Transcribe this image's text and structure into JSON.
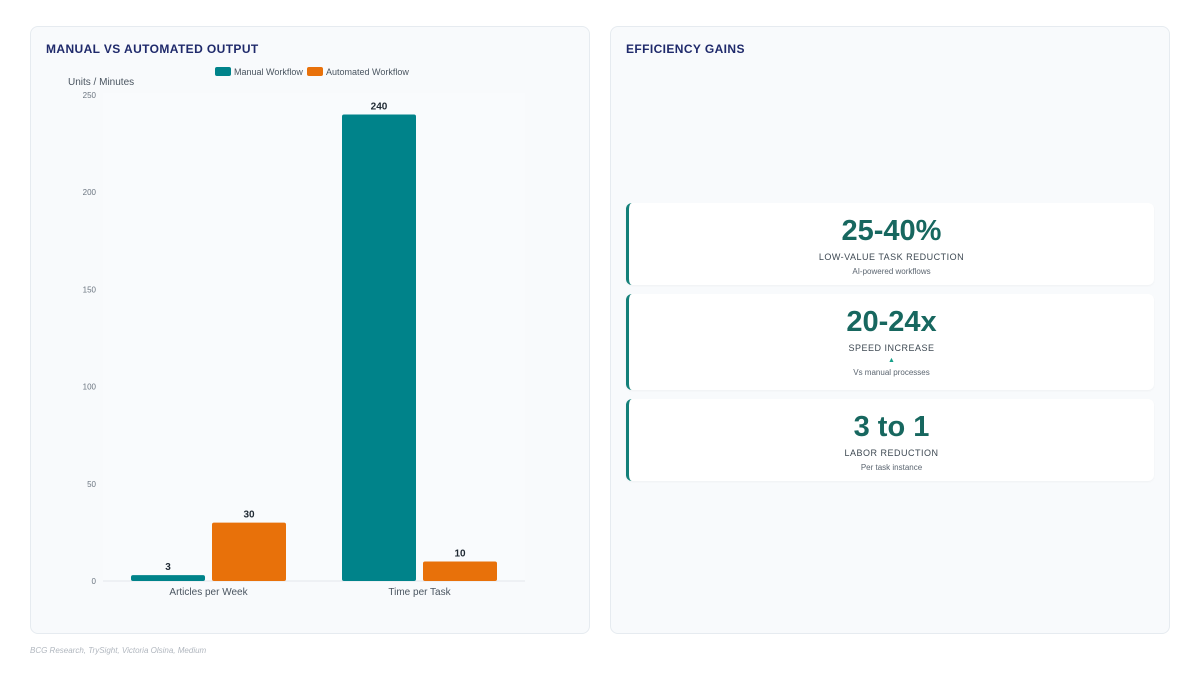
{
  "chart_panel": {
    "title": "MANUAL VS AUTOMATED OUTPUT"
  },
  "chart_data": {
    "type": "bar",
    "ylabel": "Units / Minutes",
    "categories": [
      "Articles per Week",
      "Time per Task"
    ],
    "series": [
      {
        "name": "Manual Workflow",
        "values": [
          3,
          240
        ],
        "color": "#00838a"
      },
      {
        "name": "Automated Workflow",
        "values": [
          30,
          10
        ],
        "color": "#e8710a"
      }
    ],
    "ylim": [
      0,
      250
    ],
    "yticks": [
      0,
      50,
      100,
      150,
      200,
      250
    ],
    "legend": "top",
    "grid": false,
    "data_labels": true
  },
  "gains_panel": {
    "title": "EFFICIENCY GAINS",
    "cards": [
      {
        "value": "25-40%",
        "label": "LOW-VALUE TASK REDUCTION",
        "arrow": "",
        "sub": "AI-powered workflows"
      },
      {
        "value": "20-24x",
        "label": "SPEED INCREASE",
        "arrow": "▲",
        "sub": "Vs manual processes"
      },
      {
        "value": "3 to 1",
        "label": "LABOR REDUCTION",
        "arrow": "",
        "sub": "Per task instance"
      }
    ]
  },
  "footer": {
    "source": "BCG Research, TrySight, Victoria Olsina, Medium"
  }
}
